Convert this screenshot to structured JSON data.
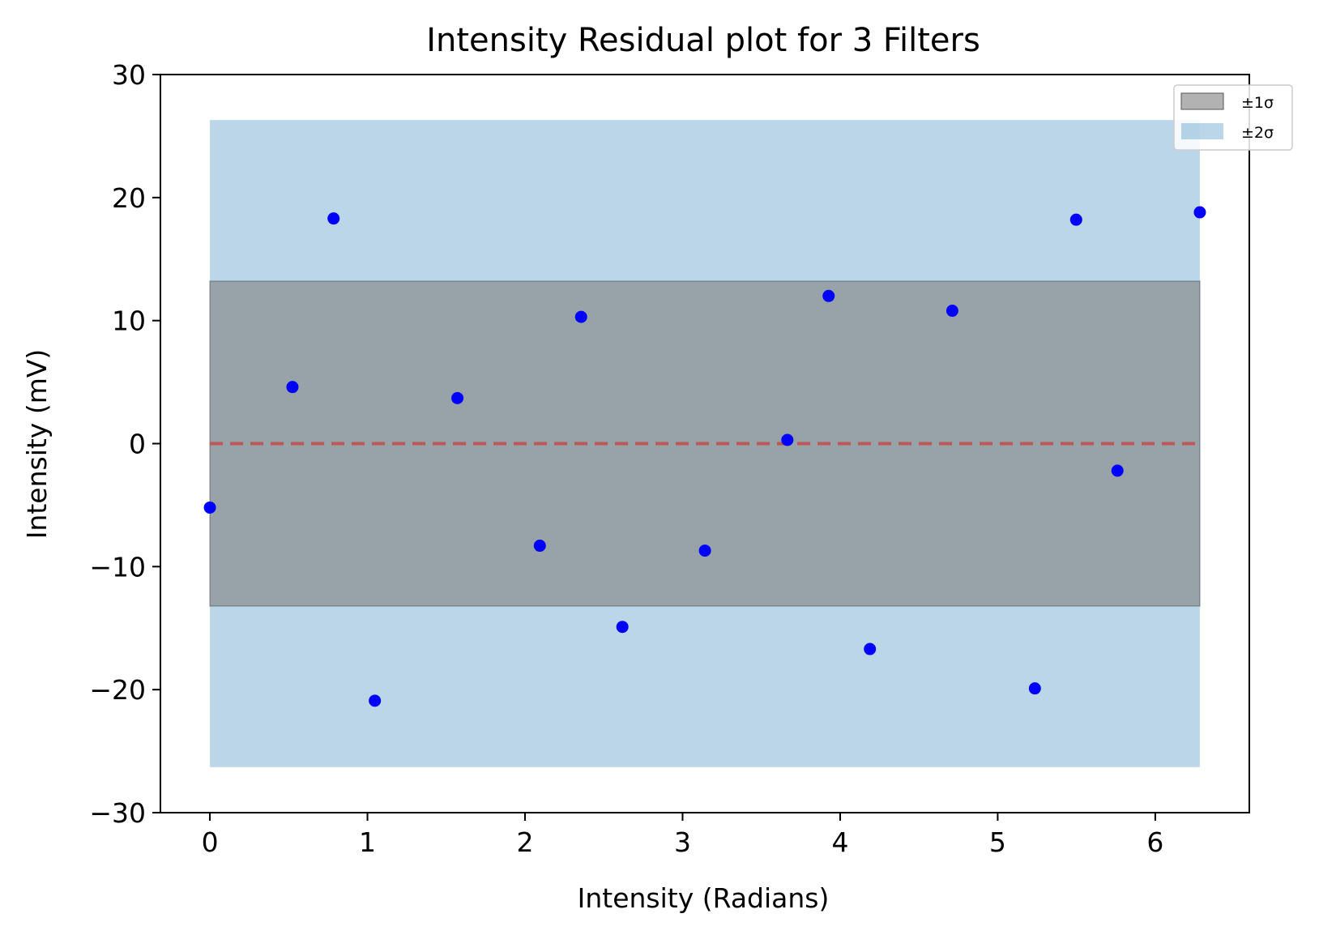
{
  "chart_data": {
    "type": "scatter",
    "title": "Intensity Residual plot for 3 Filters",
    "xlabel": "Intensity (Radians)",
    "ylabel": "Intensity (mV)",
    "xlim": [
      -0.314,
      6.597
    ],
    "ylim": [
      -30,
      30
    ],
    "x_ticks": [
      0,
      1,
      2,
      3,
      4,
      5,
      6
    ],
    "x_tick_labels": [
      "0",
      "1",
      "2",
      "3",
      "4",
      "5",
      "6"
    ],
    "y_ticks": [
      -30,
      -20,
      -10,
      0,
      10,
      20,
      30
    ],
    "y_tick_labels": [
      "−30",
      "−20",
      "−10",
      "0",
      "10",
      "20",
      "30"
    ],
    "grid": false,
    "legend_placement": "top-right",
    "reference_line": {
      "y": 0,
      "style": "dashed",
      "color": "#c0504d"
    },
    "bands": [
      {
        "label": "±1σ",
        "x_range": [
          0,
          6.283
        ],
        "y_range": [
          -13.2,
          13.2
        ],
        "color": "#7f7f7f",
        "opacity": 0.6
      },
      {
        "label": "±2σ",
        "x_range": [
          0,
          6.283
        ],
        "y_range": [
          -26.3,
          26.3
        ],
        "color": "#1f77b4",
        "opacity": 0.3
      }
    ],
    "series": [
      {
        "color": "#0000ff",
        "points": [
          {
            "x": 0.0,
            "y": -5.2
          },
          {
            "x": 0.524,
            "y": 4.6
          },
          {
            "x": 0.785,
            "y": 18.3
          },
          {
            "x": 1.047,
            "y": -20.9
          },
          {
            "x": 1.571,
            "y": 3.7
          },
          {
            "x": 2.094,
            "y": -8.3
          },
          {
            "x": 2.356,
            "y": 10.3
          },
          {
            "x": 2.618,
            "y": -14.9
          },
          {
            "x": 3.142,
            "y": -8.7
          },
          {
            "x": 3.665,
            "y": 0.3
          },
          {
            "x": 3.927,
            "y": 12.0
          },
          {
            "x": 4.189,
            "y": -16.7
          },
          {
            "x": 4.712,
            "y": 10.8
          },
          {
            "x": 5.236,
            "y": -19.9
          },
          {
            "x": 5.498,
            "y": 18.2
          },
          {
            "x": 5.76,
            "y": -2.2
          },
          {
            "x": 6.283,
            "y": 18.8
          }
        ]
      }
    ]
  }
}
